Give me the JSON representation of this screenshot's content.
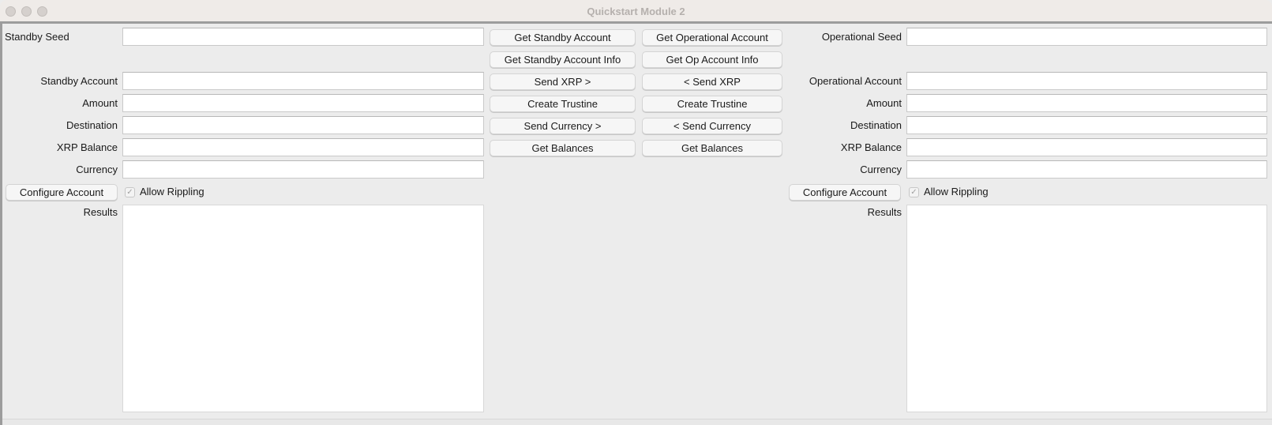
{
  "window": {
    "title": "Quickstart Module 2"
  },
  "standby": {
    "seed_label": "Standby Seed",
    "account_label": "Standby Account",
    "amount_label": "Amount",
    "destination_label": "Destination",
    "balance_label": "XRP Balance",
    "currency_label": "Currency",
    "configure_label": "Configure Account",
    "rippling_label": "Allow Rippling",
    "rippling_checked": true,
    "results_label": "Results"
  },
  "operational": {
    "seed_label": "Operational Seed",
    "account_label": "Operational Account",
    "amount_label": "Amount",
    "destination_label": "Destination",
    "balance_label": "XRP Balance",
    "currency_label": "Currency",
    "configure_label": "Configure Account",
    "rippling_label": "Allow Rippling",
    "rippling_checked": true,
    "results_label": "Results"
  },
  "buttons": {
    "standby": [
      "Get Standby Account",
      "Get Standby Account Info",
      "Send XRP >",
      "Create Trustine",
      "Send Currency >",
      "Get Balances"
    ],
    "operational": [
      "Get Operational Account",
      "Get Op Account Info",
      "< Send XRP",
      "Create Trustine",
      "< Send Currency",
      "Get Balances"
    ]
  }
}
